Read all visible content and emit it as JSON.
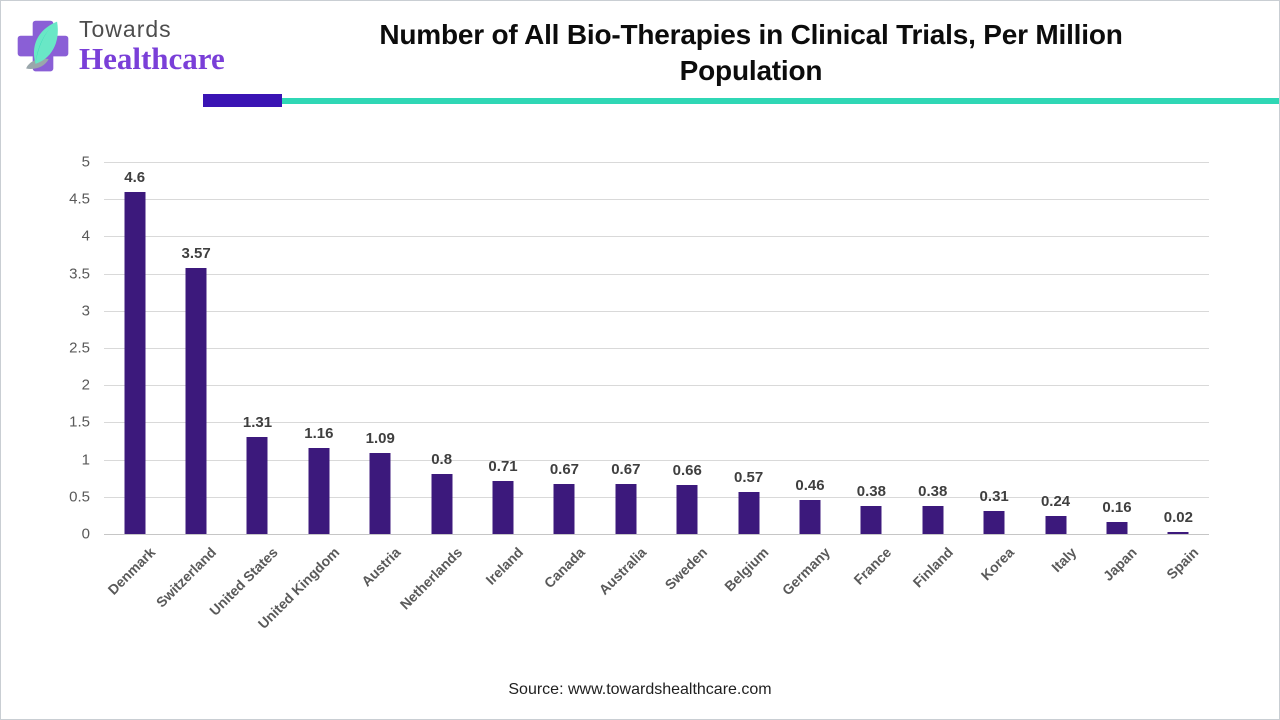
{
  "header": {
    "logo": {
      "line1": "Towards",
      "line2": "Healthcare",
      "icon": "healthcare-cross-leaf-icon",
      "line1_color": "#4d4d4d",
      "line2_color": "#7a3fd8"
    },
    "title": "Number of All Bio-Therapies in Clinical Trials, Per Million Population",
    "accent_purple_color": "#3a14b4",
    "accent_teal_color": "#2fd7b5"
  },
  "chart_data": {
    "type": "bar",
    "title": "Number of All Bio-Therapies in Clinical Trials, Per Million Population",
    "categories": [
      "Denmark",
      "Switzerland",
      "United States",
      "United Kingdom",
      "Austria",
      "Netherlands",
      "Ireland",
      "Canada",
      "Australia",
      "Sweden",
      "Belgium",
      "Germany",
      "France",
      "Finland",
      "Korea",
      "Italy",
      "Japan",
      "Spain"
    ],
    "values": [
      4.6,
      3.57,
      1.31,
      1.16,
      1.09,
      0.8,
      0.71,
      0.67,
      0.67,
      0.66,
      0.57,
      0.46,
      0.38,
      0.38,
      0.31,
      0.24,
      0.16,
      0.02
    ],
    "value_labels": [
      "4.6",
      "3.57",
      "1.31",
      "1.16",
      "1.09",
      "0.8",
      "0.71",
      "0.67",
      "0.67",
      "0.66",
      "0.57",
      "0.46",
      "0.38",
      "0.38",
      "0.31",
      "0.24",
      "0.16",
      "0.02"
    ],
    "yticks": [
      5,
      4.5,
      4,
      3.5,
      3,
      2.5,
      2,
      1.5,
      1,
      0.5,
      0
    ],
    "ylim": [
      0,
      5
    ],
    "bar_color": "#3c197c",
    "grid": "horizontal",
    "legend": "none",
    "xlabel": "",
    "ylabel": ""
  },
  "footer": {
    "source": "Source: www.towardshealthcare.com"
  }
}
